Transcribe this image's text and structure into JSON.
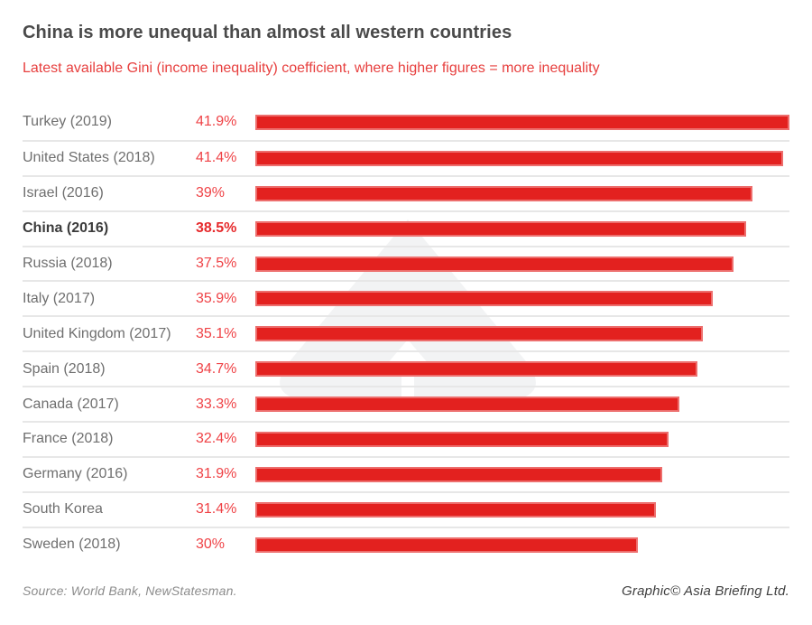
{
  "header": {
    "title": "China is more unequal than almost all western countries",
    "subtitle": "Latest available Gini (income inequality) coefficient, where higher figures = more inequality"
  },
  "chart_data": {
    "type": "bar",
    "orientation": "horizontal",
    "title": "China is more unequal than almost all western countries",
    "subtitle": "Latest available Gini (income inequality) coefficient, where higher figures = more inequality",
    "value_unit": "percent",
    "xlim": [
      0,
      41.9
    ],
    "grid": false,
    "legend": "none",
    "rows": [
      {
        "label": "Turkey (2019)",
        "value": 41.9,
        "display": "41.9%",
        "highlight": false
      },
      {
        "label": "United States (2018)",
        "value": 41.4,
        "display": "41.4%",
        "highlight": false
      },
      {
        "label": "Israel (2016)",
        "value": 39.0,
        "display": "39%",
        "highlight": false
      },
      {
        "label": "China (2016)",
        "value": 38.5,
        "display": "38.5%",
        "highlight": true
      },
      {
        "label": "Russia (2018)",
        "value": 37.5,
        "display": "37.5%",
        "highlight": false
      },
      {
        "label": "Italy (2017)",
        "value": 35.9,
        "display": "35.9%",
        "highlight": false
      },
      {
        "label": "United Kingdom (2017)",
        "value": 35.1,
        "display": "35.1%",
        "highlight": false
      },
      {
        "label": "Spain (2018)",
        "value": 34.7,
        "display": "34.7%",
        "highlight": false
      },
      {
        "label": "Canada (2017)",
        "value": 33.3,
        "display": "33.3%",
        "highlight": false
      },
      {
        "label": "France (2018)",
        "value": 32.4,
        "display": "32.4%",
        "highlight": false
      },
      {
        "label": "Germany (2016)",
        "value": 31.9,
        "display": "31.9%",
        "highlight": false
      },
      {
        "label": "South Korea",
        "value": 31.4,
        "display": "31.4%",
        "highlight": false
      },
      {
        "label": "Sweden (2018)",
        "value": 30.0,
        "display": "30%",
        "highlight": false
      }
    ]
  },
  "footer": {
    "source": "Source: World Bank, NewStatesman.",
    "credit": "Graphic© Asia Briefing Ltd."
  },
  "colors": {
    "title": "#4a4a4a",
    "subtitle": "#e7403f",
    "label": "#6f6f6f",
    "value_text": "#ef4246",
    "bar": "#e3211f",
    "separator": "#e7e7e7",
    "watermark": "#f2f3f4"
  },
  "icons": {
    "watermark": "asia-briefing-arrow-logo"
  }
}
